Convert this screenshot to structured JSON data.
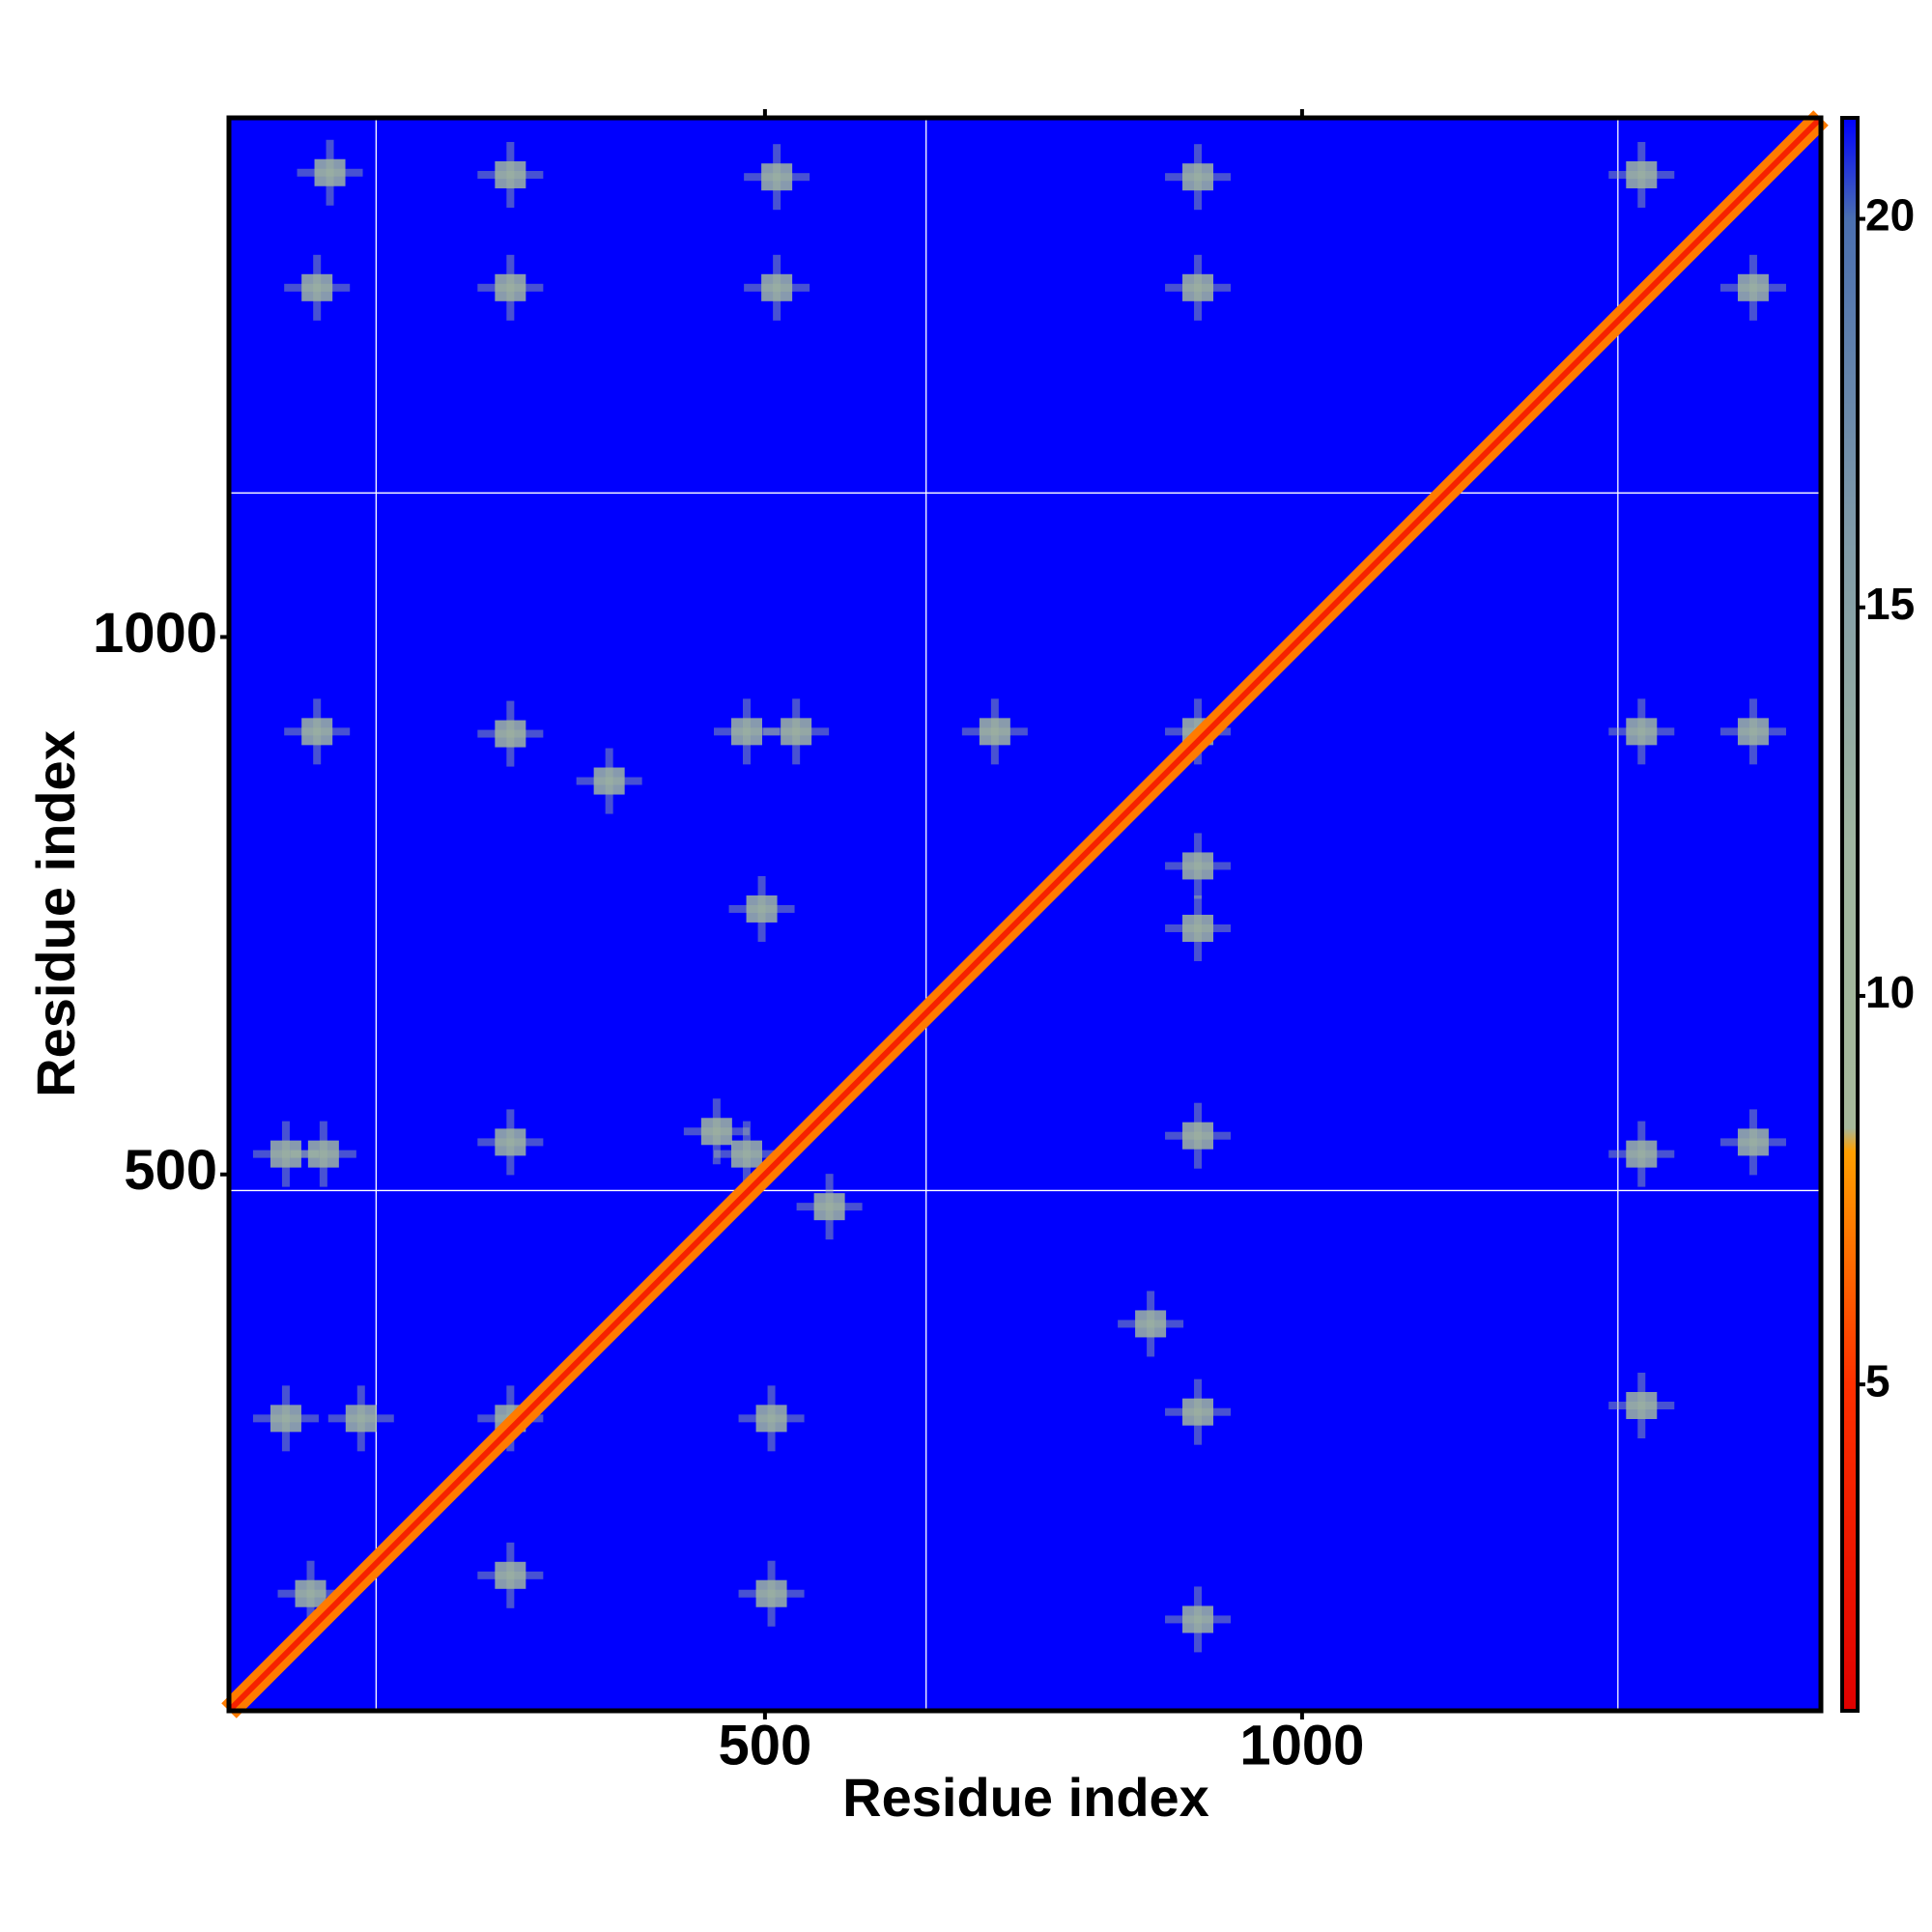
{
  "chart_data": {
    "type": "heatmap",
    "x_label": "Residue index",
    "y_label": "Residue index",
    "xlim": [
      1,
      1483
    ],
    "ylim": [
      1,
      1483
    ],
    "xticks": [
      500,
      1000
    ],
    "yticks": [
      500,
      1000
    ],
    "background": "#0000fe",
    "grid_color": "#ffffff",
    "grid_lines": {
      "x": [
        138,
        650,
        1294
      ],
      "y": [
        485,
        1134
      ]
    },
    "diagonal_values": [
      7,
      3.8
    ],
    "contacts": {
      "x": [
        95,
        263,
        511,
        903,
        1316,
        83,
        263,
        511,
        903,
        1420,
        83,
        263,
        355,
        483,
        529,
        714,
        903,
        1316,
        1420,
        903,
        497,
        903,
        54,
        89,
        263,
        483,
        903,
        1316,
        1420,
        859,
        54,
        124,
        263,
        506,
        903,
        1316,
        77,
        263,
        506,
        903,
        455,
        560
      ],
      "y": [
        1432,
        1430,
        1428,
        1428,
        1430,
        1325,
        1325,
        1325,
        1325,
        1325,
        912,
        910,
        866,
        912,
        912,
        912,
        912,
        912,
        912,
        729,
        747,
        787,
        519,
        519,
        530,
        519,
        536,
        519,
        530,
        361,
        273,
        273,
        273,
        273,
        279,
        285,
        110,
        127,
        110,
        86,
        540,
        470
      ],
      "values": [
        12,
        12,
        12,
        12,
        12,
        12,
        11,
        12,
        11,
        12,
        12,
        11,
        12,
        12,
        11,
        11,
        11,
        12,
        12,
        11,
        12,
        12,
        12,
        12,
        12,
        12,
        11,
        12,
        12,
        12,
        12,
        12,
        12,
        12,
        11,
        12,
        12,
        12,
        12,
        12,
        11,
        11
      ]
    },
    "colorbar": {
      "lim": [
        0.8,
        21.3
      ],
      "ticks": [
        5,
        10,
        15,
        20
      ],
      "colorscale": [
        [
          0.8,
          "#e00000"
        ],
        [
          5,
          "#ff3000"
        ],
        [
          8,
          "#ffa000"
        ],
        [
          8.3,
          "#a6b89a"
        ],
        [
          12,
          "#9fb5a0"
        ],
        [
          16,
          "#7f9aa8"
        ],
        [
          20,
          "#4a6fb0"
        ],
        [
          21.3,
          "#0000ff"
        ]
      ]
    }
  }
}
